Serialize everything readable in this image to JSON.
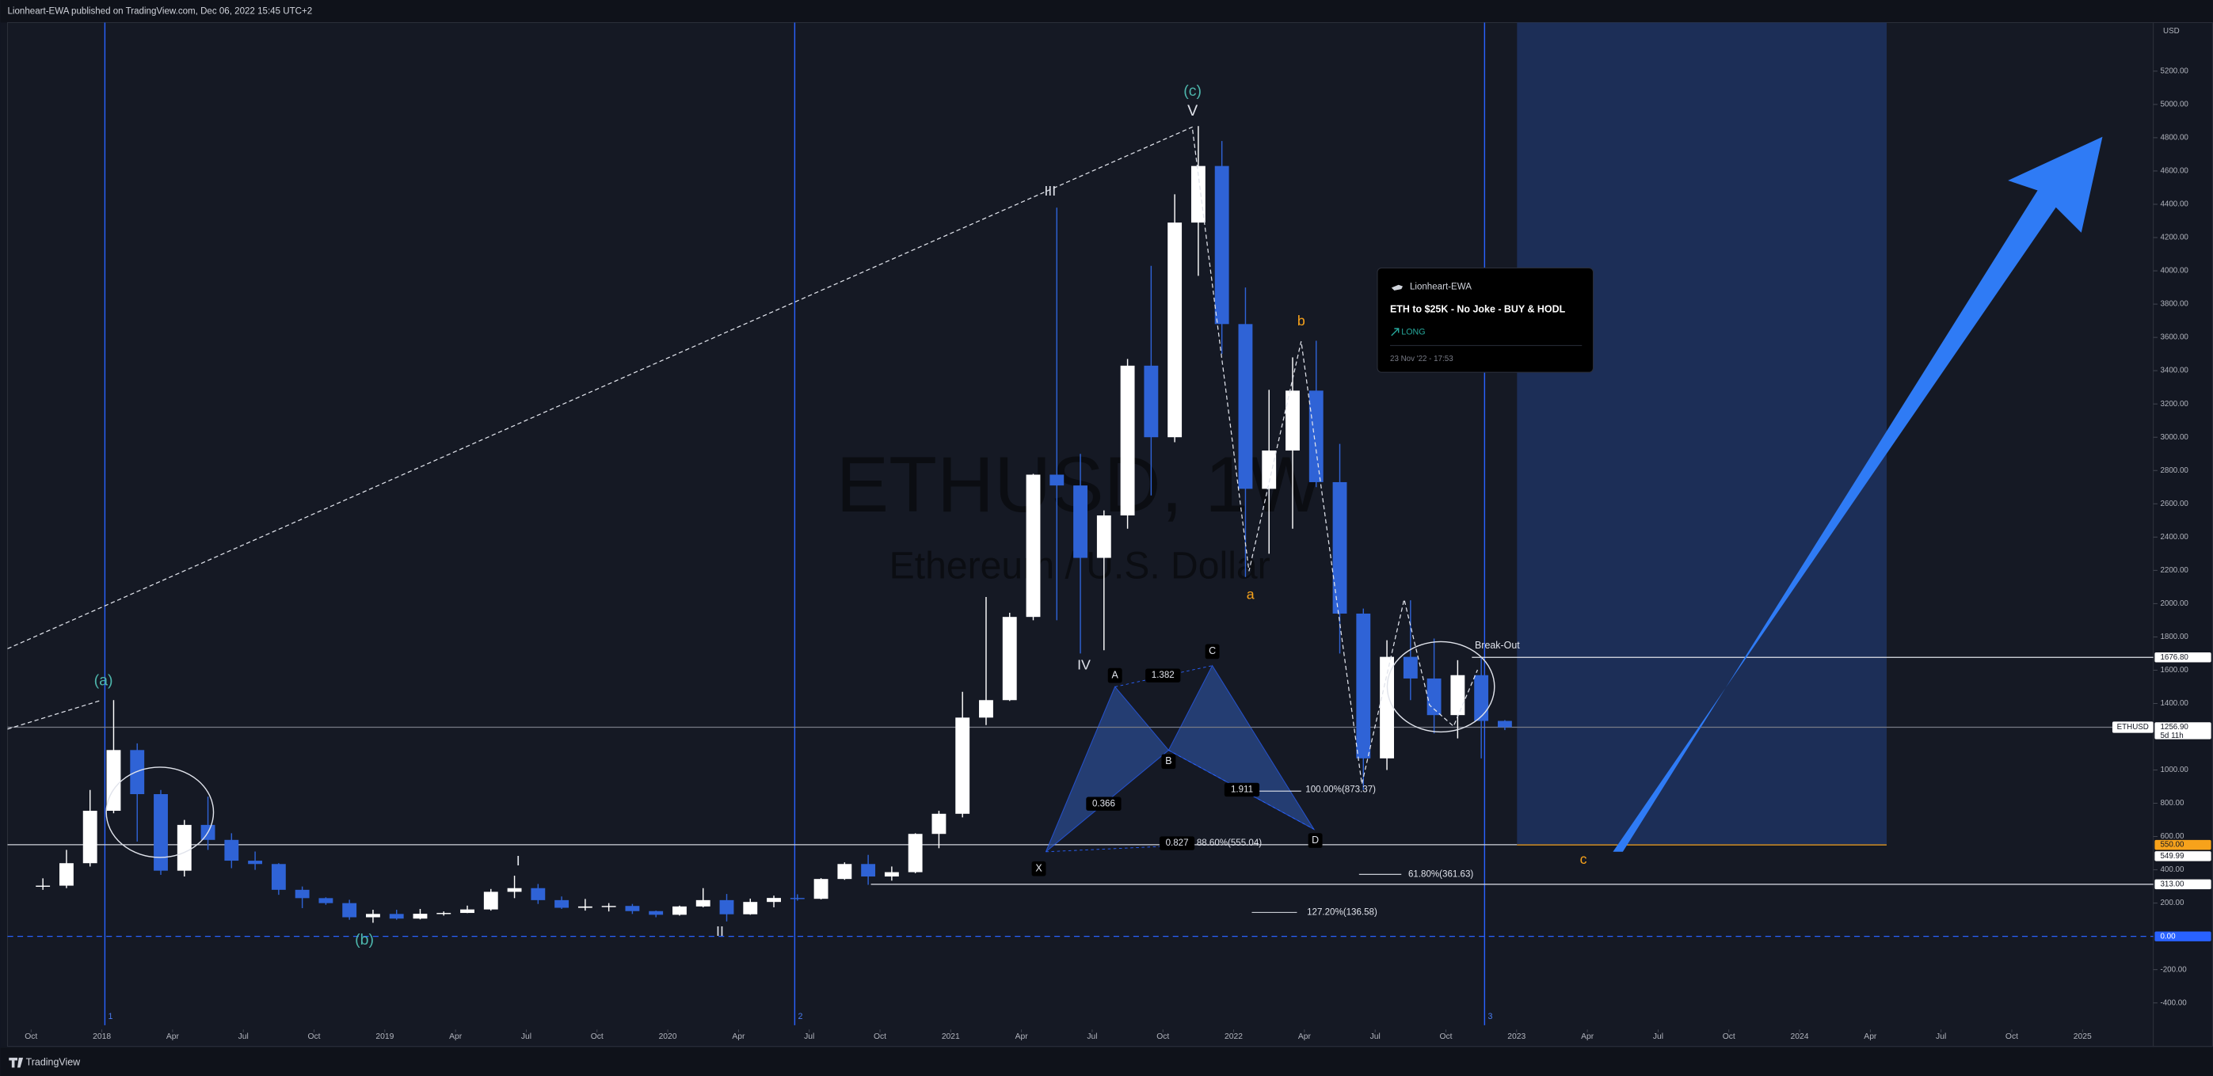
{
  "header": {
    "text": "Lionheart-EWA published on TradingView.com, Dec 06, 2022 15:45 UTC+2"
  },
  "footer": {
    "brand": "TradingView"
  },
  "idea_card": {
    "author": "Lionheart-EWA",
    "title": "ETH to $25K - No Joke - BUY & HODL",
    "direction": "LONG",
    "date": "23 Nov '22 - 17:53"
  },
  "chart_data": {
    "type": "candlestick",
    "watermark": "ETHUSD, 1W",
    "watermark_subtitle": "Ethereum / U.S. Dollar",
    "y_axis_label": "USD",
    "symbol_tag": "ETHUSD",
    "countdown": "5d 11h",
    "ylim": [
      -661,
      5492
    ],
    "xlim": [
      "2017-09",
      "2025-04"
    ],
    "yticks": [
      {
        "value": -400,
        "label": "-400.00"
      },
      {
        "value": -200,
        "label": "-200.00"
      },
      {
        "value": 200,
        "label": "200.00"
      },
      {
        "value": 400,
        "label": "400.00"
      },
      {
        "value": 600,
        "label": "600.00"
      },
      {
        "value": 800,
        "label": "800.00"
      },
      {
        "value": 1000,
        "label": "1000.00"
      },
      {
        "value": 1400,
        "label": "1400.00"
      },
      {
        "value": 1600,
        "label": "1600.00"
      },
      {
        "value": 1800,
        "label": "1800.00"
      },
      {
        "value": 2000,
        "label": "2000.00"
      },
      {
        "value": 2200,
        "label": "2200.00"
      },
      {
        "value": 2400,
        "label": "2400.00"
      },
      {
        "value": 2600,
        "label": "2600.00"
      },
      {
        "value": 2800,
        "label": "2800.00"
      },
      {
        "value": 3000,
        "label": "3000.00"
      },
      {
        "value": 3200,
        "label": "3200.00"
      },
      {
        "value": 3400,
        "label": "3400.00"
      },
      {
        "value": 3600,
        "label": "3600.00"
      },
      {
        "value": 3800,
        "label": "3800.00"
      },
      {
        "value": 4000,
        "label": "4000.00"
      },
      {
        "value": 4200,
        "label": "4200.00"
      },
      {
        "value": 4400,
        "label": "4400.00"
      },
      {
        "value": 4600,
        "label": "4600.00"
      },
      {
        "value": 4800,
        "label": "4800.00"
      },
      {
        "value": 5000,
        "label": "5000.00"
      },
      {
        "value": 5200,
        "label": "5200.00"
      }
    ],
    "xticks": [
      {
        "value": "2017-10",
        "label": "Oct"
      },
      {
        "value": "2018-01",
        "label": "2018"
      },
      {
        "value": "2018-04",
        "label": "Apr"
      },
      {
        "value": "2018-07",
        "label": "Jul"
      },
      {
        "value": "2018-10",
        "label": "Oct"
      },
      {
        "value": "2019-01",
        "label": "2019"
      },
      {
        "value": "2019-04",
        "label": "Apr"
      },
      {
        "value": "2019-07",
        "label": "Jul"
      },
      {
        "value": "2019-10",
        "label": "Oct"
      },
      {
        "value": "2020-01",
        "label": "2020"
      },
      {
        "value": "2020-04",
        "label": "Apr"
      },
      {
        "value": "2020-07",
        "label": "Jul"
      },
      {
        "value": "2020-10",
        "label": "Oct"
      },
      {
        "value": "2021-01",
        "label": "2021"
      },
      {
        "value": "2021-04",
        "label": "Apr"
      },
      {
        "value": "2021-07",
        "label": "Jul"
      },
      {
        "value": "2021-10",
        "label": "Oct"
      },
      {
        "value": "2022-01",
        "label": "2022"
      },
      {
        "value": "2022-04",
        "label": "Apr"
      },
      {
        "value": "2022-07",
        "label": "Jul"
      },
      {
        "value": "2022-10",
        "label": "Oct"
      },
      {
        "value": "2023-01",
        "label": "2023"
      },
      {
        "value": "2023-04",
        "label": "Apr"
      },
      {
        "value": "2023-07",
        "label": "Jul"
      },
      {
        "value": "2023-10",
        "label": "Oct"
      },
      {
        "value": "2024-01",
        "label": "2024"
      },
      {
        "value": "2024-04",
        "label": "Apr"
      },
      {
        "value": "2024-07",
        "label": "Jul"
      },
      {
        "value": "2024-10",
        "label": "Oct"
      },
      {
        "value": "2025-01",
        "label": "2025"
      }
    ],
    "up_color": "#ffffff",
    "down_color": "#2f63d6",
    "x": [
      "2017-10",
      "2017-11",
      "2017-12",
      "2018-01",
      "2018-02",
      "2018-03",
      "2018-04",
      "2018-05",
      "2018-06",
      "2018-07",
      "2018-08",
      "2018-09",
      "2018-10",
      "2018-11",
      "2018-12",
      "2019-01",
      "2019-02",
      "2019-03",
      "2019-04",
      "2019-05",
      "2019-06",
      "2019-07",
      "2019-08",
      "2019-09",
      "2019-10",
      "2019-11",
      "2019-12",
      "2020-01",
      "2020-02",
      "2020-03",
      "2020-04",
      "2020-05",
      "2020-06",
      "2020-07",
      "2020-08",
      "2020-09",
      "2020-10",
      "2020-11",
      "2020-12",
      "2021-01",
      "2021-02",
      "2021-03",
      "2021-04",
      "2021-05",
      "2021-06",
      "2021-07",
      "2021-08",
      "2021-09",
      "2021-10",
      "2021-11",
      "2021-12",
      "2022-01",
      "2022-02",
      "2022-03",
      "2022-04",
      "2022-05",
      "2022-06",
      "2022-07",
      "2022-08",
      "2022-09",
      "2022-10",
      "2022-11",
      "2022-12"
    ],
    "open": [
      302,
      305,
      440,
      755,
      1120,
      855,
      395,
      670,
      580,
      455,
      435,
      280,
      230,
      200,
      115,
      135,
      107,
      136,
      141,
      162,
      268,
      290,
      218,
      172,
      180,
      183,
      152,
      130,
      180,
      218,
      133,
      207,
      231,
      226,
      345,
      435,
      360,
      386,
      616,
      737,
      1315,
      1420,
      1920,
      2775,
      2710,
      2275,
      2530,
      3430,
      3000,
      4290,
      4630,
      3680,
      2690,
      2920,
      3280,
      2730,
      1940,
      1070,
      1680,
      1550,
      1330,
      1570,
      1295
    ],
    "high": [
      349,
      520,
      880,
      1420,
      1160,
      880,
      700,
      840,
      620,
      510,
      440,
      300,
      235,
      220,
      160,
      160,
      165,
      150,
      185,
      285,
      365,
      315,
      240,
      225,
      200,
      195,
      155,
      185,
      290,
      255,
      227,
      245,
      253,
      350,
      445,
      490,
      420,
      620,
      755,
      1470,
      2040,
      1945,
      2780,
      4380,
      2900,
      2560,
      3470,
      4030,
      4460,
      4870,
      4780,
      3900,
      3285,
      3480,
      3580,
      2960,
      1970,
      1780,
      2020,
      1790,
      1660,
      1680,
      1300
    ],
    "low": [
      280,
      290,
      420,
      740,
      570,
      370,
      360,
      520,
      410,
      400,
      250,
      170,
      190,
      100,
      82,
      100,
      102,
      125,
      140,
      155,
      230,
      195,
      165,
      155,
      150,
      135,
      115,
      125,
      175,
      90,
      130,
      175,
      215,
      222,
      340,
      310,
      335,
      380,
      530,
      715,
      1270,
      1415,
      1900,
      1900,
      1700,
      1720,
      2450,
      2650,
      2970,
      3970,
      3500,
      2160,
      2300,
      2450,
      2700,
      1700,
      880,
      1000,
      1420,
      1220,
      1190,
      1070,
      1240
    ],
    "close": [
      305,
      440,
      755,
      1120,
      855,
      395,
      670,
      580,
      455,
      435,
      280,
      230,
      200,
      115,
      135,
      107,
      136,
      141,
      162,
      268,
      290,
      218,
      172,
      180,
      183,
      152,
      130,
      180,
      218,
      133,
      207,
      231,
      226,
      345,
      435,
      360,
      386,
      616,
      737,
      1315,
      1420,
      1920,
      2775,
      2710,
      2275,
      2530,
      3430,
      3000,
      4290,
      4630,
      3680,
      2690,
      2920,
      3280,
      2730,
      1940,
      1070,
      1680,
      1550,
      1330,
      1570,
      1295,
      1257
    ],
    "price_labels": [
      {
        "value": 1676.8,
        "label": "1676.80"
      },
      {
        "value": 1256.9,
        "label": "1256.90"
      },
      {
        "value": 550,
        "label": "550.00"
      },
      {
        "value": 549.99,
        "label": "549.99"
      },
      {
        "value": 313,
        "label": "313.00"
      },
      {
        "value": 0,
        "label": "0.00"
      }
    ],
    "annotations": [
      "(a)",
      "(b)",
      "(c)",
      "I",
      "II",
      "III",
      "IV",
      "V",
      "a",
      "b",
      "c",
      "X",
      "A",
      "B",
      "C",
      "D",
      "1.382",
      "0.366",
      "1.911",
      "0.827",
      "100.00%(873.37)",
      "88.60%(555.04)",
      "61.80%(361.63)",
      "127.20%(136.58)",
      "Break-Out",
      "1",
      "2",
      "3"
    ]
  }
}
